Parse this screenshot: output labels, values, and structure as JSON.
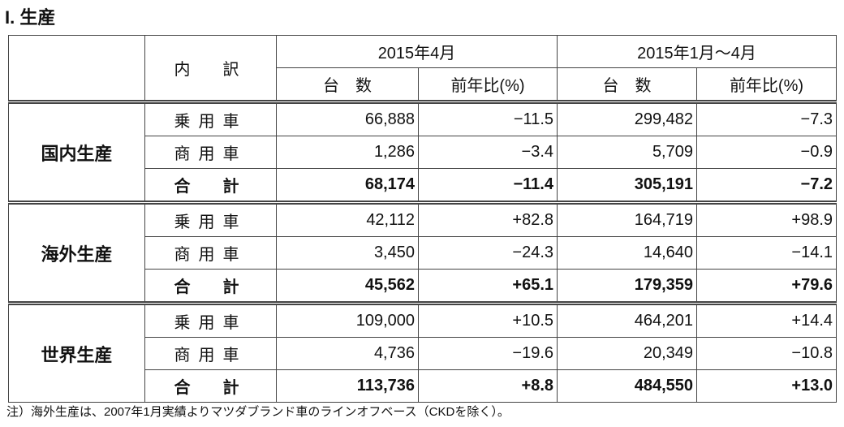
{
  "title": "I. 生産",
  "table": {
    "header": {
      "breakdown": "内　訳",
      "periods": [
        "2015年4月",
        "2015年1月～4月"
      ],
      "subheaders": [
        "台　数",
        "前年比(%)",
        "台　数",
        "前年比(%)"
      ]
    },
    "groups": [
      {
        "name": "国内生産",
        "rows": [
          {
            "label": "乗用車",
            "cells": [
              "66,888",
              "−11.5",
              "299,482",
              "−7.3"
            ]
          },
          {
            "label": "商用車",
            "cells": [
              "1,286",
              "−3.4",
              "5,709",
              "−0.9"
            ]
          },
          {
            "label": "合　計",
            "cells": [
              "68,174",
              "−11.4",
              "305,191",
              "−7.2"
            ]
          }
        ]
      },
      {
        "name": "海外生産",
        "rows": [
          {
            "label": "乗用車",
            "cells": [
              "42,112",
              "+82.8",
              "164,719",
              "+98.9"
            ]
          },
          {
            "label": "商用車",
            "cells": [
              "3,450",
              "−24.3",
              "14,640",
              "−14.1"
            ]
          },
          {
            "label": "合　計",
            "cells": [
              "45,562",
              "+65.1",
              "179,359",
              "+79.6"
            ]
          }
        ]
      },
      {
        "name": "世界生産",
        "rows": [
          {
            "label": "乗用車",
            "cells": [
              "109,000",
              "+10.5",
              "464,201",
              "+14.4"
            ]
          },
          {
            "label": "商用車",
            "cells": [
              "4,736",
              "−19.6",
              "20,349",
              "−10.8"
            ]
          },
          {
            "label": "合　計",
            "cells": [
              "113,736",
              "+8.8",
              "484,550",
              "+13.0"
            ]
          }
        ]
      }
    ]
  },
  "note": "注）海外生産は、2007年1月実績よりマツダブランド車のラインオフベース（CKDを除く）。"
}
